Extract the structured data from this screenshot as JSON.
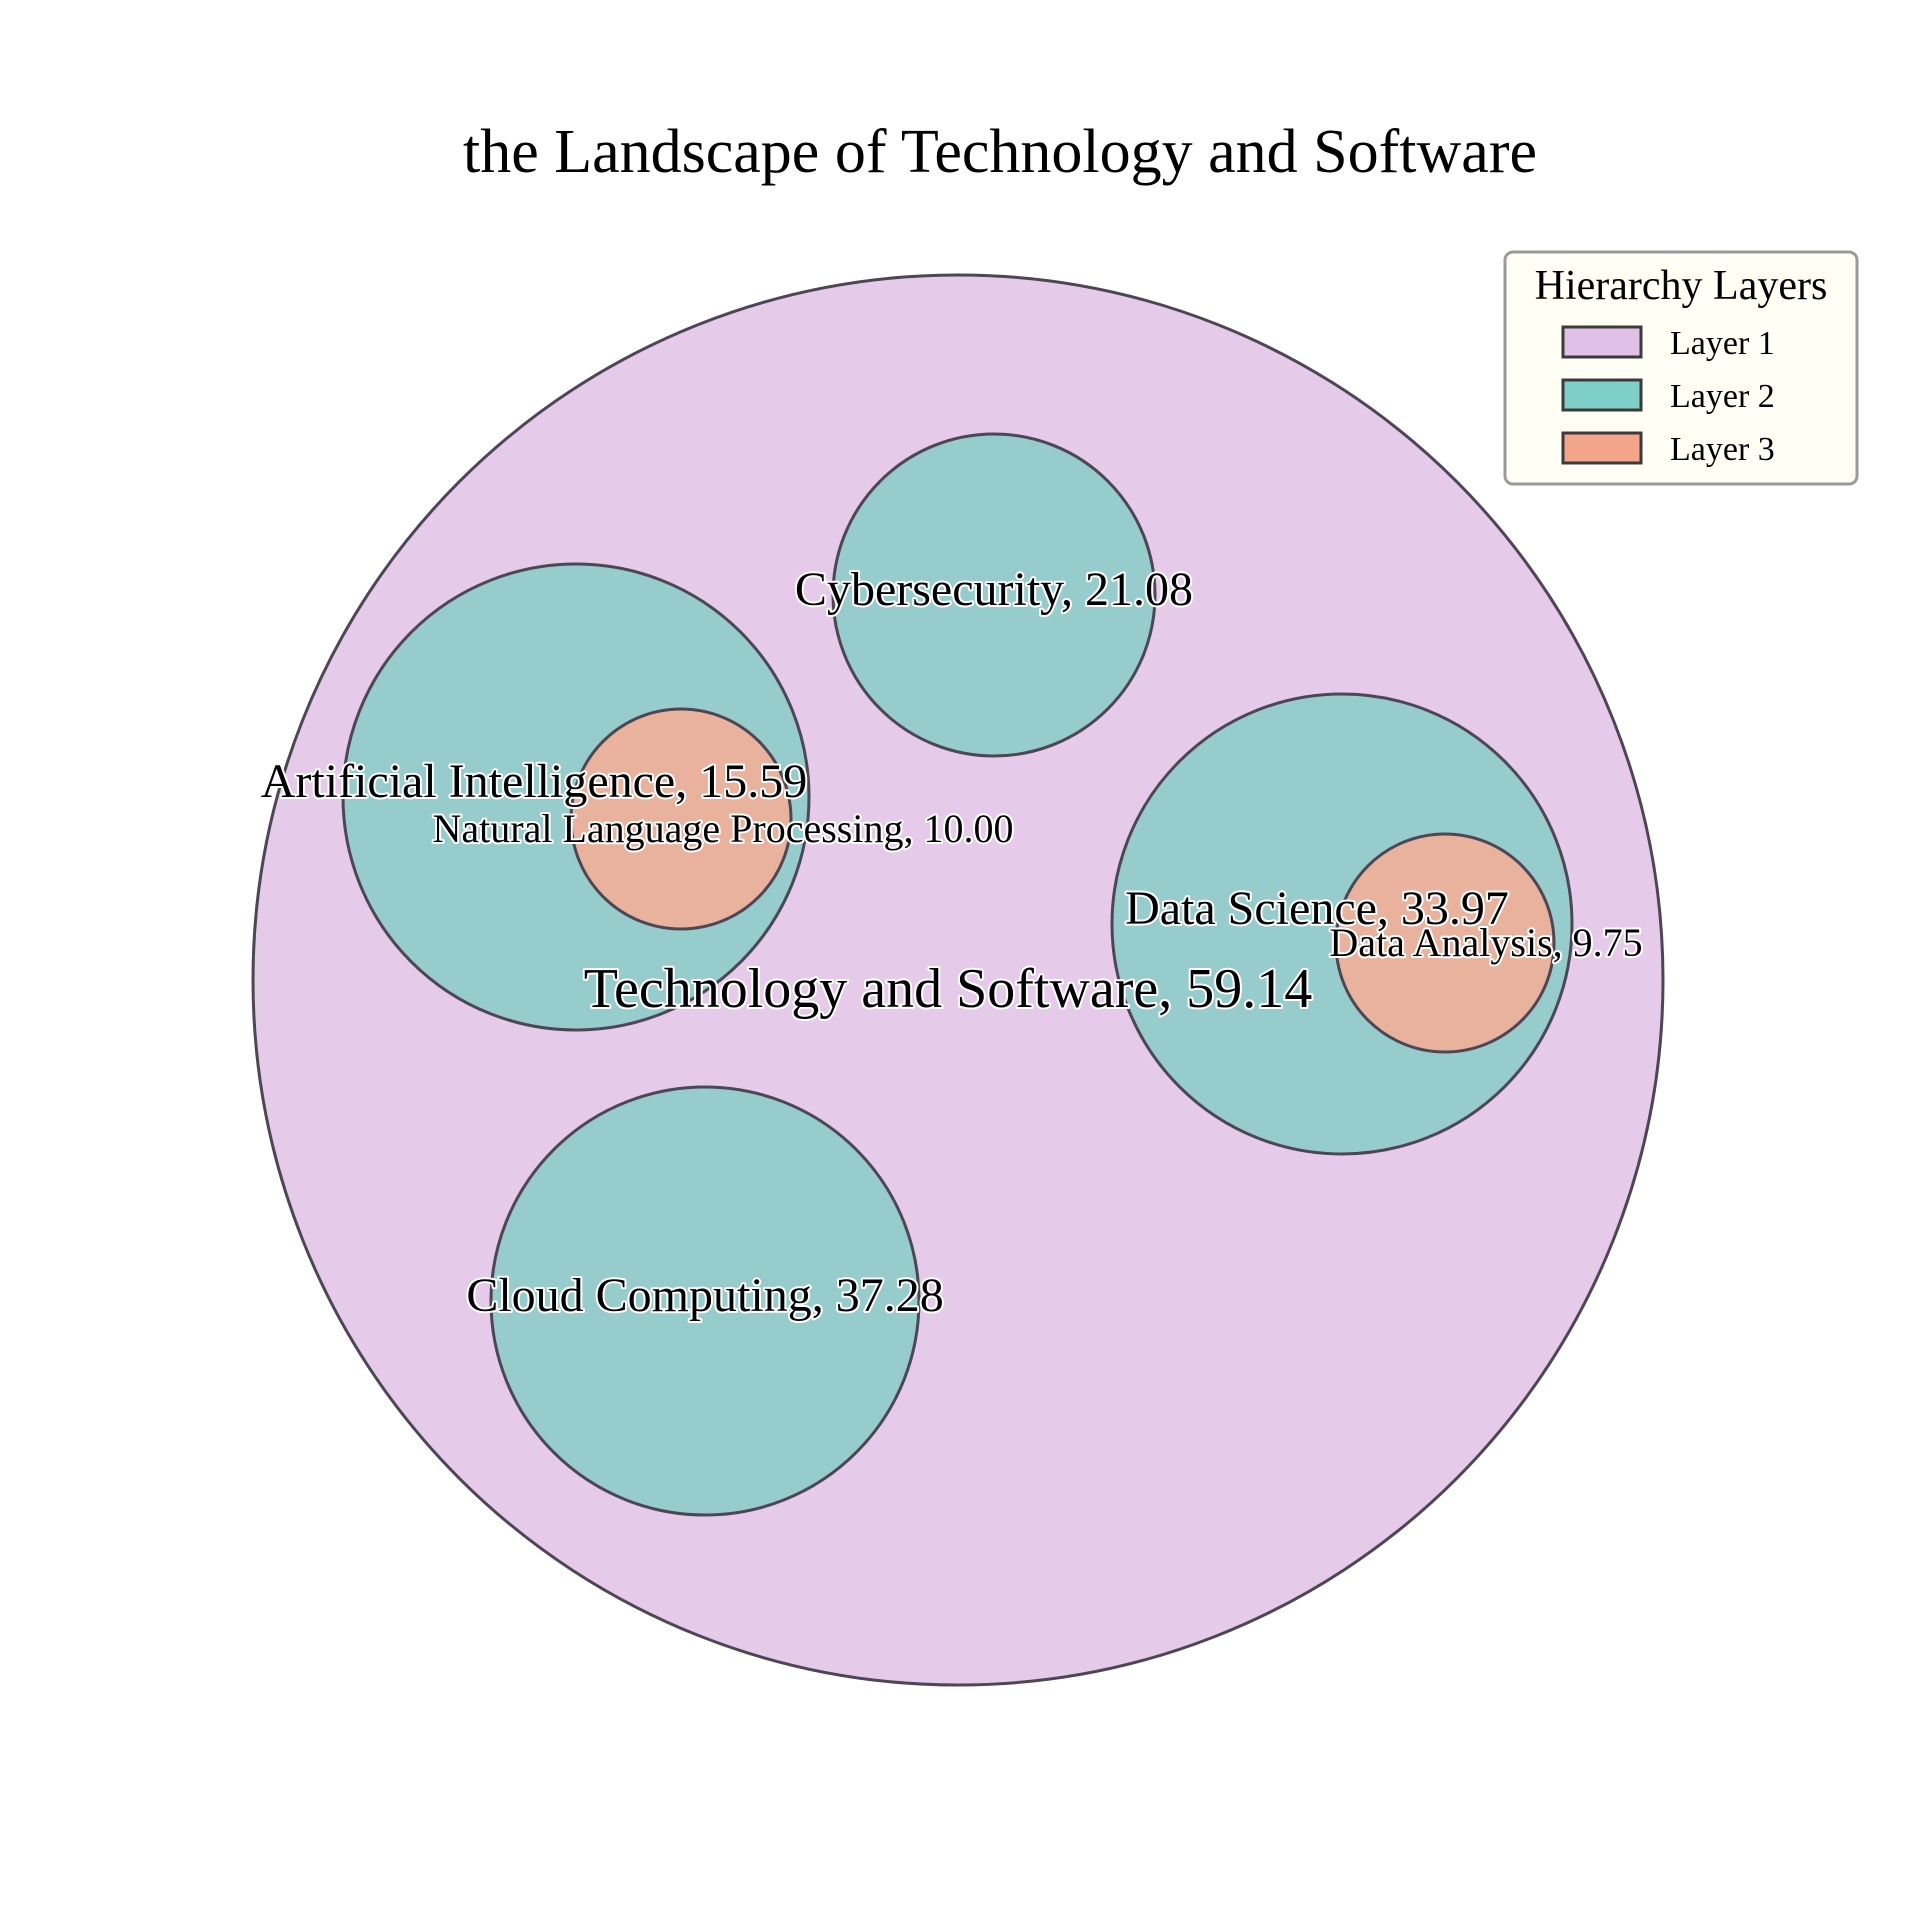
{
  "chart_data": {
    "type": "circle-packing",
    "title": "the Landscape of Technology and Software",
    "legend": {
      "title": "Hierarchy Layers",
      "placement": "top-right",
      "items": [
        {
          "label": "Layer 1",
          "color": "#e0c0e6"
        },
        {
          "label": "Layer 2",
          "color": "#7fcfc9"
        },
        {
          "label": "Layer 3",
          "color": "#f3a58a"
        }
      ]
    },
    "nodes": [
      {
        "label": "Technology and Software, 59.14",
        "name": "Technology and Software",
        "value": 59.14,
        "layer": 1
      },
      {
        "label": "Artificial Intelligence, 15.59",
        "name": "Artificial Intelligence",
        "value": 15.59,
        "layer": 2,
        "parent": "Technology and Software"
      },
      {
        "label": "Natural Language Processing, 10.00",
        "name": "Natural Language Processing",
        "value": 10.0,
        "layer": 3,
        "parent": "Artificial Intelligence"
      },
      {
        "label": "Cybersecurity, 21.08",
        "name": "Cybersecurity",
        "value": 21.08,
        "layer": 2,
        "parent": "Technology and Software"
      },
      {
        "label": "Data Science, 33.97",
        "name": "Data Science",
        "value": 33.97,
        "layer": 2,
        "parent": "Technology and Software"
      },
      {
        "label": "Data Analysis, 9.75",
        "name": "Data Analysis",
        "value": 9.75,
        "layer": 3,
        "parent": "Data Science"
      },
      {
        "label": "Cloud Computing, 37.28",
        "name": "Cloud Computing",
        "value": 37.28,
        "layer": 2,
        "parent": "Technology and Software"
      }
    ]
  }
}
